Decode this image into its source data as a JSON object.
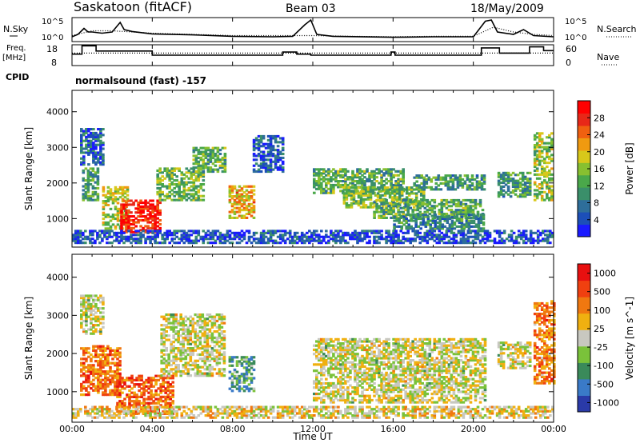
{
  "header": {
    "station": "Saskatoon (fitACF)",
    "beam": "Beam 03",
    "date": "18/May/2009"
  },
  "labels": {
    "nsky": "N.Sky",
    "nsearch": "N.Search",
    "freq_line1": "Freq.",
    "freq_line2": "[MHz]",
    "nave": "Nave",
    "cpid": "CPID",
    "mode": "normalsound (fast) -157"
  },
  "noise_axis": {
    "left_ticks": [
      "10^5",
      "10^0"
    ],
    "right_ticks": [
      "10^5",
      "10^0"
    ]
  },
  "freq_axis": {
    "left_ticks": [
      "18",
      "8"
    ],
    "right_ticks": [
      "60",
      "0"
    ]
  },
  "chart_data": [
    {
      "type": "line",
      "panel": "noise",
      "x_unit": "hours UT",
      "xlim": [
        0,
        24
      ],
      "series": [
        {
          "name": "N.Sky",
          "style": "solid",
          "x": [
            0,
            0.3,
            0.6,
            0.8,
            1.0,
            1.5,
            2.0,
            2.4,
            2.6,
            3.0,
            4.0,
            6.0,
            8.0,
            10.0,
            11.0,
            11.6,
            11.9,
            12.2,
            13.0,
            16.0,
            18.0,
            20.0,
            20.6,
            20.9,
            21.2,
            22.0,
            22.5,
            23.0,
            24.0
          ],
          "y_frac": [
            0.2,
            0.3,
            0.55,
            0.4,
            0.4,
            0.35,
            0.4,
            0.8,
            0.5,
            0.42,
            0.32,
            0.28,
            0.22,
            0.2,
            0.22,
            0.7,
            0.9,
            0.3,
            0.22,
            0.18,
            0.2,
            0.2,
            0.85,
            0.9,
            0.4,
            0.3,
            0.5,
            0.25,
            0.2
          ]
        },
        {
          "name": "N.Search",
          "style": "dotted",
          "x": [
            0,
            1.0,
            2.0,
            3.0,
            4.0,
            6.0,
            8.0,
            10.0,
            12.0,
            14.0,
            16.0,
            18.0,
            20.0,
            21.0,
            22.0,
            23.0,
            24.0
          ],
          "y_frac": [
            0.25,
            0.45,
            0.45,
            0.4,
            0.35,
            0.3,
            0.25,
            0.25,
            0.25,
            0.22,
            0.2,
            0.22,
            0.22,
            0.6,
            0.4,
            0.3,
            0.25
          ]
        }
      ]
    },
    {
      "type": "line",
      "panel": "frequency",
      "x_unit": "hours UT",
      "xlim": [
        0,
        24
      ],
      "series": [
        {
          "name": "Freq.",
          "style": "solid",
          "x": [
            0,
            0.5,
            0.5,
            1.2,
            1.2,
            4.0,
            4.0,
            10.5,
            10.5,
            11.2,
            11.2,
            11.9,
            11.9,
            15.9,
            15.9,
            16.1,
            16.1,
            20.4,
            20.4,
            21.3,
            21.3,
            22.8,
            22.8,
            23.5,
            23.5,
            24.0
          ],
          "y_frac": [
            0.55,
            0.55,
            0.95,
            0.95,
            0.7,
            0.7,
            0.5,
            0.5,
            0.65,
            0.65,
            0.55,
            0.55,
            0.5,
            0.5,
            0.65,
            0.65,
            0.5,
            0.5,
            0.85,
            0.85,
            0.6,
            0.6,
            0.9,
            0.9,
            0.72,
            0.72
          ]
        },
        {
          "name": "Nave",
          "style": "dotted",
          "x": [
            0,
            24
          ],
          "y_frac": [
            0.6,
            0.6
          ]
        }
      ]
    },
    {
      "type": "heatmap",
      "panel": "power",
      "x_unit": "hours UT",
      "xlim": [
        0,
        24
      ],
      "ylabel": "Slant Range [km]",
      "ylim": [
        200,
        4600
      ],
      "yticks": [
        "1000",
        "2000",
        "3000",
        "4000"
      ],
      "colorbar": {
        "label": "Power [dB]",
        "ticks": [
          "4",
          "8",
          "12",
          "16",
          "20",
          "24",
          "28"
        ],
        "colors": [
          "#1a1aff",
          "#1c4fb8",
          "#2e6e9a",
          "#3a8f6a",
          "#4aa84a",
          "#88c030",
          "#d8c81a",
          "#f09a10",
          "#f06010",
          "#e82818",
          "#ff0000"
        ]
      },
      "regions": [
        {
          "t0": 0.4,
          "t1": 1.6,
          "r0": 2500,
          "r1": 3500,
          "level": 0.2
        },
        {
          "t0": 0.5,
          "t1": 1.3,
          "r0": 1500,
          "r1": 2400,
          "level": 0.35
        },
        {
          "t0": 1.5,
          "t1": 2.8,
          "r0": 700,
          "r1": 1900,
          "level": 0.55
        },
        {
          "t0": 2.4,
          "t1": 4.4,
          "r0": 600,
          "r1": 1500,
          "level": 0.9
        },
        {
          "t0": 4.2,
          "t1": 6.5,
          "r0": 1500,
          "r1": 2400,
          "level": 0.45
        },
        {
          "t0": 6.0,
          "t1": 7.6,
          "r0": 2300,
          "r1": 3000,
          "level": 0.4
        },
        {
          "t0": 7.8,
          "t1": 9.0,
          "r0": 1000,
          "r1": 1900,
          "level": 0.65
        },
        {
          "t0": 9.0,
          "t1": 10.5,
          "r0": 2300,
          "r1": 3300,
          "level": 0.15
        },
        {
          "t0": 12.0,
          "t1": 16.5,
          "r0": 1700,
          "r1": 2400,
          "level": 0.4
        },
        {
          "t0": 13.5,
          "t1": 17.5,
          "r0": 1300,
          "r1": 1900,
          "level": 0.45
        },
        {
          "t0": 15.0,
          "t1": 20.5,
          "r0": 1000,
          "r1": 1500,
          "level": 0.4
        },
        {
          "t0": 16.0,
          "t1": 20.5,
          "r0": 700,
          "r1": 1100,
          "level": 0.3
        },
        {
          "t0": 17.0,
          "t1": 20.5,
          "r0": 1800,
          "r1": 2200,
          "level": 0.35
        },
        {
          "t0": 21.2,
          "t1": 22.8,
          "r0": 1600,
          "r1": 2300,
          "level": 0.35
        },
        {
          "t0": 23.0,
          "t1": 23.9,
          "r0": 1500,
          "r1": 3400,
          "level": 0.5
        },
        {
          "t0": 0.0,
          "t1": 24.0,
          "r0": 300,
          "r1": 650,
          "level": 0.15
        }
      ]
    },
    {
      "type": "heatmap",
      "panel": "velocity",
      "x_unit": "hours UT",
      "xlim": [
        0,
        24
      ],
      "xlabel": "Time UT",
      "xticks": [
        "00:00",
        "04:00",
        "08:00",
        "12:00",
        "16:00",
        "20:00",
        "00:00"
      ],
      "ylabel": "Slant Range [km]",
      "ylim": [
        200,
        4600
      ],
      "yticks": [
        "1000",
        "2000",
        "3000",
        "4000"
      ],
      "colorbar": {
        "label": "Velocity [m s^-1]",
        "ticks": [
          "1000",
          "500",
          "100",
          "25",
          "-25",
          "-100",
          "-500",
          "-1000"
        ],
        "colors": [
          "#2a3aa8",
          "#3a7ac8",
          "#3a8a5a",
          "#7ac23a",
          "#c8c8c0",
          "#f0b010",
          "#f07810",
          "#f04010",
          "#e81010"
        ]
      },
      "regions": [
        {
          "t0": 0.4,
          "t1": 1.6,
          "r0": 2500,
          "r1": 3500,
          "level": 0.5
        },
        {
          "t0": 0.4,
          "t1": 2.4,
          "r0": 900,
          "r1": 2200,
          "level": 0.75
        },
        {
          "t0": 2.2,
          "t1": 5.0,
          "r0": 400,
          "r1": 1400,
          "level": 0.78
        },
        {
          "t0": 4.4,
          "t1": 7.6,
          "r0": 1400,
          "r1": 3000,
          "level": 0.5
        },
        {
          "t0": 7.8,
          "t1": 9.0,
          "r0": 1000,
          "r1": 1900,
          "level": 0.3
        },
        {
          "t0": 12.0,
          "t1": 20.6,
          "r0": 700,
          "r1": 2400,
          "level": 0.5
        },
        {
          "t0": 21.2,
          "t1": 22.8,
          "r0": 1600,
          "r1": 2300,
          "level": 0.5
        },
        {
          "t0": 23.0,
          "t1": 24.0,
          "r0": 1200,
          "r1": 3400,
          "level": 0.72
        },
        {
          "t0": 0.0,
          "t1": 24.0,
          "r0": 300,
          "r1": 600,
          "level": 0.55
        }
      ]
    }
  ]
}
